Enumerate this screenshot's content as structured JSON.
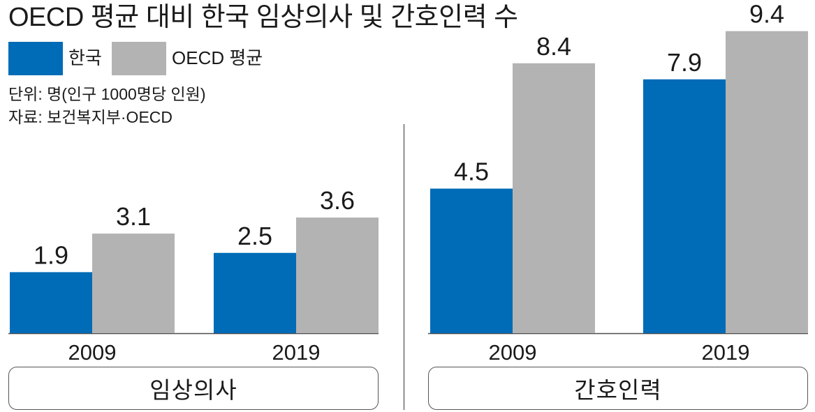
{
  "title": "OECD 평균 대비 한국 임상의사 및 간호인력 수",
  "legend": [
    {
      "label": "한국",
      "color": "#006bb6"
    },
    {
      "label": "OECD 평균",
      "color": "#b3b3b3"
    }
  ],
  "unit_note": "단위: 명(인구 1000명당 인원)",
  "source_note": "자료: 보건복지부·OECD",
  "chart_data": [
    {
      "type": "bar",
      "title": "임상의사",
      "categories": [
        "2009",
        "2019"
      ],
      "series": [
        {
          "name": "한국",
          "values": [
            1.9,
            2.5
          ],
          "labels": [
            "1.9",
            "2.5"
          ],
          "color": "#006bb6"
        },
        {
          "name": "OECD 평균",
          "values": [
            3.1,
            3.6
          ],
          "labels": [
            "3.1",
            "3.6"
          ],
          "color": "#b3b3b3"
        }
      ],
      "ylim": [
        0,
        10
      ]
    },
    {
      "type": "bar",
      "title": "간호인력",
      "categories": [
        "2009",
        "2019"
      ],
      "series": [
        {
          "name": "한국",
          "values": [
            4.5,
            7.9
          ],
          "labels": [
            "4.5",
            "7.9"
          ],
          "color": "#006bb6"
        },
        {
          "name": "OECD 평균",
          "values": [
            8.4,
            9.4
          ],
          "labels": [
            "8.4",
            "9.4"
          ],
          "color": "#b3b3b3"
        }
      ],
      "ylim": [
        0,
        10
      ]
    }
  ]
}
